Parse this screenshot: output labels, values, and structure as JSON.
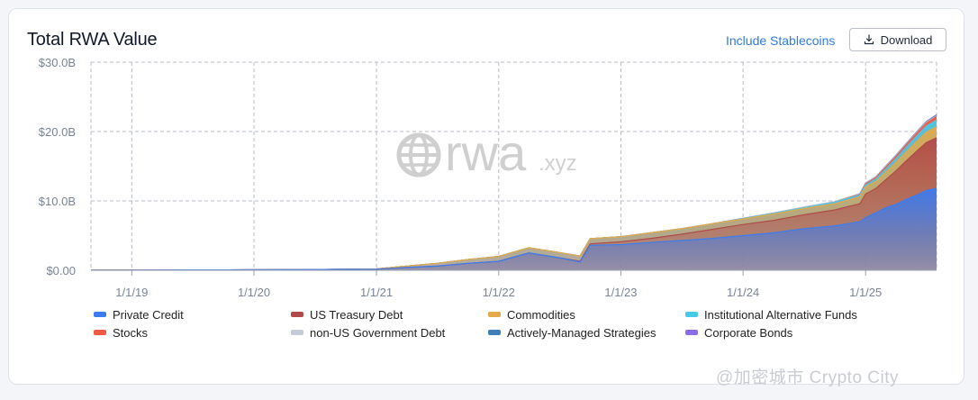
{
  "header": {
    "title": "Total RWA Value",
    "stablecoins_link": "Include Stablecoins",
    "download_label": "Download"
  },
  "watermark": {
    "logo_text": "rwa",
    "logo_suffix": ".xyz"
  },
  "corner_watermark": "@加密城市 Crypto City",
  "icons": {
    "download": "download-icon",
    "watermark": "globe-icon"
  },
  "chart_data": {
    "type": "area",
    "stacked": true,
    "title": "Total RWA Value",
    "x_axis": {
      "type": "date",
      "ticks": [
        "1/1/19",
        "1/1/20",
        "1/1/21",
        "1/1/22",
        "1/1/23",
        "1/1/24",
        "1/1/25"
      ],
      "range": [
        "2018-09-01",
        "2025-08-01"
      ]
    },
    "y_axis": {
      "ticks": [
        "$0.00",
        "$10.0B",
        "$20.0B",
        "$30.0B"
      ],
      "range": [
        0,
        30
      ],
      "unit": "B USD"
    },
    "grid": true,
    "legend_position": "bottom",
    "x": [
      "2018-09-01",
      "2019-01-01",
      "2019-07-01",
      "2020-01-01",
      "2020-07-01",
      "2021-01-01",
      "2021-04-01",
      "2021-07-01",
      "2021-10-01",
      "2022-01-01",
      "2022-04-01",
      "2022-07-01",
      "2022-09-01",
      "2022-10-01",
      "2023-01-01",
      "2023-04-01",
      "2023-07-01",
      "2023-10-01",
      "2024-01-01",
      "2024-04-01",
      "2024-07-01",
      "2024-10-01",
      "2024-12-15",
      "2025-01-01",
      "2025-02-01",
      "2025-03-01",
      "2025-04-01",
      "2025-05-01",
      "2025-06-01",
      "2025-07-01",
      "2025-08-01"
    ],
    "series": [
      {
        "name": "Private Credit",
        "color": "#3b7cf0",
        "values": [
          0.02,
          0.03,
          0.05,
          0.07,
          0.1,
          0.15,
          0.4,
          0.6,
          1.0,
          1.3,
          2.5,
          1.8,
          1.2,
          3.6,
          3.7,
          4.0,
          4.3,
          4.6,
          5.0,
          5.4,
          6.0,
          6.4,
          7.0,
          7.6,
          8.3,
          9.0,
          9.5,
          10.2,
          10.8,
          11.5,
          11.8
        ]
      },
      {
        "name": "US Treasury Debt",
        "color": "#b04a4a",
        "values": [
          0,
          0,
          0,
          0,
          0,
          0,
          0,
          0,
          0,
          0,
          0,
          0,
          0.1,
          0.2,
          0.4,
          0.6,
          0.9,
          1.3,
          1.6,
          1.8,
          2.0,
          2.3,
          2.6,
          3.4,
          3.5,
          4.0,
          4.8,
          5.5,
          6.3,
          6.9,
          7.3
        ]
      },
      {
        "name": "Commodities",
        "color": "#e3a94a",
        "values": [
          0,
          0,
          0,
          0,
          0,
          0.05,
          0.2,
          0.4,
          0.55,
          0.7,
          0.75,
          0.75,
          0.75,
          0.75,
          0.75,
          0.8,
          0.8,
          0.8,
          0.8,
          0.9,
          0.9,
          0.9,
          1.0,
          1.0,
          1.0,
          1.1,
          1.2,
          1.3,
          1.4,
          1.5,
          1.6
        ]
      },
      {
        "name": "Institutional Alternative Funds",
        "color": "#45cbe8",
        "values": [
          0,
          0,
          0,
          0,
          0,
          0,
          0,
          0,
          0,
          0,
          0,
          0,
          0,
          0,
          0,
          0,
          0,
          0,
          0.05,
          0.1,
          0.1,
          0.2,
          0.25,
          0.3,
          0.35,
          0.45,
          0.55,
          0.65,
          0.75,
          0.85,
          0.95
        ]
      },
      {
        "name": "Stocks",
        "color": "#ee5a45",
        "values": [
          0,
          0,
          0,
          0,
          0,
          0,
          0,
          0,
          0,
          0,
          0,
          0,
          0,
          0,
          0,
          0,
          0,
          0,
          0,
          0,
          0,
          0,
          0.1,
          0.15,
          0.2,
          0.25,
          0.3,
          0.35,
          0.4,
          0.45,
          0.5
        ]
      },
      {
        "name": "non-US Government Debt",
        "color": "#c4cbd6",
        "values": [
          0,
          0,
          0,
          0,
          0,
          0,
          0,
          0,
          0,
          0,
          0,
          0,
          0,
          0,
          0,
          0,
          0,
          0,
          0.05,
          0.05,
          0.1,
          0.1,
          0.1,
          0.1,
          0.1,
          0.1,
          0.1,
          0.1,
          0.1,
          0.1,
          0.1
        ]
      },
      {
        "name": "Actively-Managed Strategies",
        "color": "#3f7fb9",
        "values": [
          0,
          0,
          0,
          0,
          0,
          0,
          0,
          0,
          0,
          0,
          0,
          0,
          0,
          0,
          0,
          0,
          0,
          0,
          0,
          0,
          0,
          0,
          0,
          0.02,
          0.03,
          0.04,
          0.05,
          0.06,
          0.07,
          0.08,
          0.09
        ]
      },
      {
        "name": "Corporate Bonds",
        "color": "#8b6ce8",
        "values": [
          0,
          0,
          0,
          0,
          0,
          0,
          0,
          0,
          0,
          0,
          0,
          0,
          0,
          0,
          0,
          0,
          0,
          0,
          0,
          0,
          0,
          0,
          0,
          0,
          0,
          0.02,
          0.03,
          0.04,
          0.05,
          0.06,
          0.07
        ]
      }
    ]
  }
}
